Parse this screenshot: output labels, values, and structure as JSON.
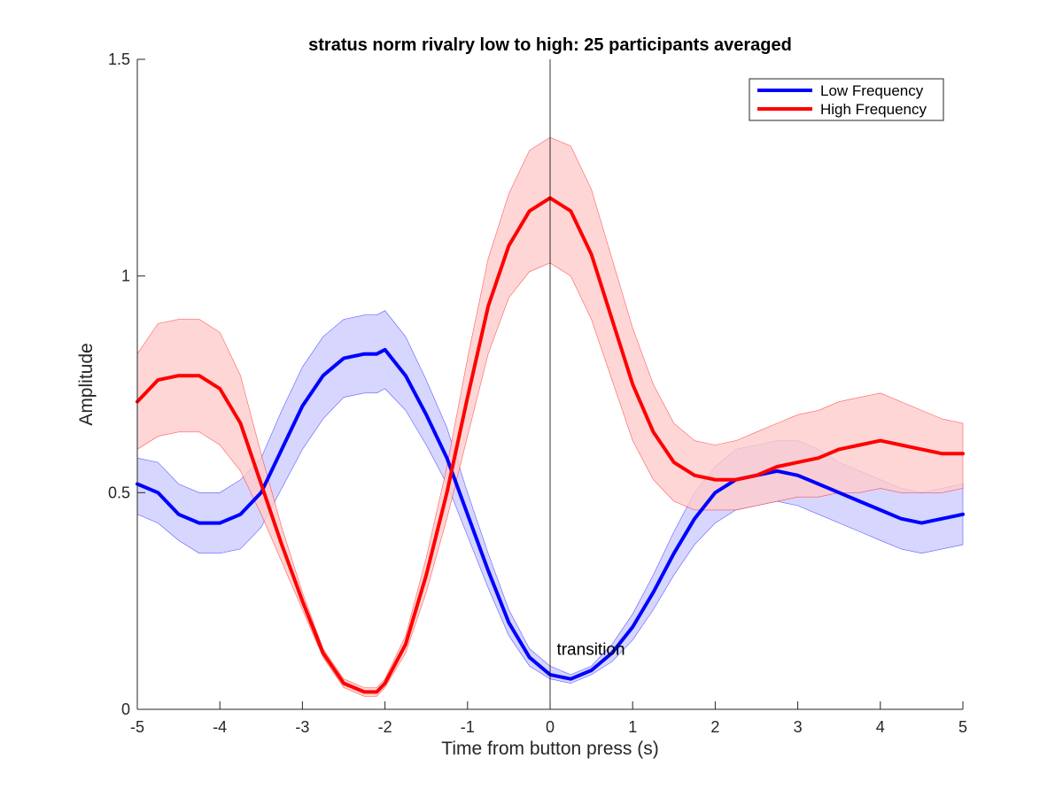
{
  "chart_data": {
    "type": "line",
    "title": "stratus norm rivalry low to high: 25 participants averaged",
    "xlabel": "Time from button press (s)",
    "ylabel": "Amplitude",
    "xlim": [
      -5,
      5
    ],
    "ylim": [
      0,
      1.5
    ],
    "xticks": [
      -5,
      -4,
      -3,
      -2,
      -1,
      0,
      1,
      2,
      3,
      4,
      5
    ],
    "yticks": [
      0,
      0.5,
      1,
      1.5
    ],
    "ytick_labels": [
      "0",
      "0.5",
      "1",
      "1.5"
    ],
    "grid": false,
    "legend": "top-right",
    "x": [
      -5,
      -4.75,
      -4.5,
      -4.25,
      -4,
      -3.75,
      -3.5,
      -3.25,
      -3,
      -2.75,
      -2.5,
      -2.25,
      -2.1,
      -2,
      -1.75,
      -1.5,
      -1.25,
      -1,
      -0.75,
      -0.5,
      -0.25,
      0,
      0.25,
      0.5,
      0.75,
      1,
      1.25,
      1.5,
      1.75,
      2,
      2.25,
      2.5,
      2.75,
      3,
      3.25,
      3.5,
      3.75,
      4,
      4.25,
      4.5,
      4.75,
      5
    ],
    "series": [
      {
        "name": "Low Frequency",
        "color": "#0000ff",
        "fill": "#ccccff",
        "values": [
          0.52,
          0.5,
          0.45,
          0.43,
          0.43,
          0.45,
          0.5,
          0.6,
          0.7,
          0.77,
          0.81,
          0.82,
          0.82,
          0.83,
          0.77,
          0.68,
          0.58,
          0.45,
          0.32,
          0.2,
          0.12,
          0.08,
          0.07,
          0.09,
          0.13,
          0.19,
          0.27,
          0.36,
          0.44,
          0.5,
          0.53,
          0.54,
          0.55,
          0.54,
          0.52,
          0.5,
          0.48,
          0.46,
          0.44,
          0.43,
          0.44,
          0.45
        ],
        "lower": [
          0.45,
          0.43,
          0.39,
          0.36,
          0.36,
          0.37,
          0.42,
          0.51,
          0.6,
          0.67,
          0.72,
          0.73,
          0.73,
          0.74,
          0.69,
          0.61,
          0.52,
          0.4,
          0.28,
          0.17,
          0.1,
          0.07,
          0.06,
          0.08,
          0.11,
          0.16,
          0.23,
          0.31,
          0.38,
          0.43,
          0.46,
          0.47,
          0.48,
          0.47,
          0.45,
          0.43,
          0.41,
          0.39,
          0.37,
          0.36,
          0.37,
          0.38
        ],
        "upper": [
          0.58,
          0.57,
          0.52,
          0.5,
          0.5,
          0.53,
          0.58,
          0.69,
          0.79,
          0.86,
          0.9,
          0.91,
          0.91,
          0.92,
          0.86,
          0.76,
          0.65,
          0.5,
          0.36,
          0.23,
          0.14,
          0.1,
          0.08,
          0.1,
          0.15,
          0.22,
          0.31,
          0.41,
          0.5,
          0.56,
          0.6,
          0.61,
          0.62,
          0.62,
          0.6,
          0.57,
          0.55,
          0.53,
          0.51,
          0.5,
          0.51,
          0.52
        ]
      },
      {
        "name": "High Frequency",
        "color": "#ff0000",
        "fill": "#ffcccc",
        "values": [
          0.71,
          0.76,
          0.77,
          0.77,
          0.74,
          0.66,
          0.52,
          0.38,
          0.25,
          0.13,
          0.06,
          0.04,
          0.04,
          0.06,
          0.15,
          0.31,
          0.5,
          0.72,
          0.93,
          1.07,
          1.15,
          1.18,
          1.15,
          1.05,
          0.9,
          0.75,
          0.64,
          0.57,
          0.54,
          0.53,
          0.53,
          0.54,
          0.56,
          0.57,
          0.58,
          0.6,
          0.61,
          0.62,
          0.61,
          0.6,
          0.59,
          0.59
        ],
        "lower": [
          0.6,
          0.63,
          0.64,
          0.64,
          0.61,
          0.55,
          0.45,
          0.34,
          0.23,
          0.12,
          0.05,
          0.03,
          0.03,
          0.05,
          0.13,
          0.27,
          0.44,
          0.63,
          0.82,
          0.95,
          1.01,
          1.03,
          1.0,
          0.9,
          0.76,
          0.62,
          0.53,
          0.48,
          0.46,
          0.46,
          0.46,
          0.47,
          0.48,
          0.49,
          0.49,
          0.5,
          0.5,
          0.51,
          0.5,
          0.5,
          0.5,
          0.51
        ],
        "upper": [
          0.82,
          0.89,
          0.9,
          0.9,
          0.87,
          0.77,
          0.59,
          0.42,
          0.27,
          0.14,
          0.07,
          0.05,
          0.05,
          0.07,
          0.17,
          0.35,
          0.56,
          0.81,
          1.04,
          1.19,
          1.29,
          1.32,
          1.3,
          1.2,
          1.04,
          0.88,
          0.75,
          0.66,
          0.62,
          0.61,
          0.62,
          0.64,
          0.66,
          0.68,
          0.69,
          0.71,
          0.72,
          0.73,
          0.71,
          0.69,
          0.67,
          0.66
        ]
      }
    ],
    "annotations": [
      {
        "text": "transition",
        "x": 0.08,
        "y": 0.14
      }
    ],
    "vline": {
      "x": 0
    }
  }
}
